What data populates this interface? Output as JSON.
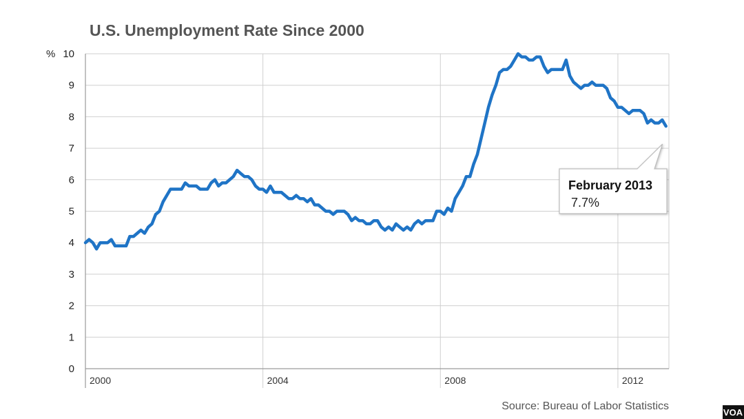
{
  "chart_data": {
    "type": "line",
    "title": "U.S. Unemployment Rate Since 2000",
    "ylabel_prefix": "%",
    "ylim": [
      0,
      10
    ],
    "yticks": [
      0,
      1,
      2,
      3,
      4,
      5,
      6,
      7,
      8,
      9,
      10
    ],
    "xlim": [
      2000,
      2013.15
    ],
    "xticks": [
      2000,
      2004,
      2008,
      2012
    ],
    "xtick_labels": [
      "2000",
      "2004",
      "2008",
      "2012"
    ],
    "grid": true,
    "source": "Source: Bureau of Labor Statistics",
    "series": [
      {
        "color": "#1f74c6",
        "x": [
          2000.0,
          2000.083,
          2000.167,
          2000.25,
          2000.333,
          2000.417,
          2000.5,
          2000.583,
          2000.667,
          2000.75,
          2000.833,
          2000.917,
          2001.0,
          2001.083,
          2001.167,
          2001.25,
          2001.333,
          2001.417,
          2001.5,
          2001.583,
          2001.667,
          2001.75,
          2001.833,
          2001.917,
          2002.0,
          2002.083,
          2002.167,
          2002.25,
          2002.333,
          2002.417,
          2002.5,
          2002.583,
          2002.667,
          2002.75,
          2002.833,
          2002.917,
          2003.0,
          2003.083,
          2003.167,
          2003.25,
          2003.333,
          2003.417,
          2003.5,
          2003.583,
          2003.667,
          2003.75,
          2003.833,
          2003.917,
          2004.0,
          2004.083,
          2004.167,
          2004.25,
          2004.333,
          2004.417,
          2004.5,
          2004.583,
          2004.667,
          2004.75,
          2004.833,
          2004.917,
          2005.0,
          2005.083,
          2005.167,
          2005.25,
          2005.333,
          2005.417,
          2005.5,
          2005.583,
          2005.667,
          2005.75,
          2005.833,
          2005.917,
          2006.0,
          2006.083,
          2006.167,
          2006.25,
          2006.333,
          2006.417,
          2006.5,
          2006.583,
          2006.667,
          2006.75,
          2006.833,
          2006.917,
          2007.0,
          2007.083,
          2007.167,
          2007.25,
          2007.333,
          2007.417,
          2007.5,
          2007.583,
          2007.667,
          2007.75,
          2007.833,
          2007.917,
          2008.0,
          2008.083,
          2008.167,
          2008.25,
          2008.333,
          2008.417,
          2008.5,
          2008.583,
          2008.667,
          2008.75,
          2008.833,
          2008.917,
          2009.0,
          2009.083,
          2009.167,
          2009.25,
          2009.333,
          2009.417,
          2009.5,
          2009.583,
          2009.667,
          2009.75,
          2009.833,
          2009.917,
          2010.0,
          2010.083,
          2010.167,
          2010.25,
          2010.333,
          2010.417,
          2010.5,
          2010.583,
          2010.667,
          2010.75,
          2010.833,
          2010.917,
          2011.0,
          2011.083,
          2011.167,
          2011.25,
          2011.333,
          2011.417,
          2011.5,
          2011.583,
          2011.667,
          2011.75,
          2011.833,
          2011.917,
          2012.0,
          2012.083,
          2012.167,
          2012.25,
          2012.333,
          2012.417,
          2012.5,
          2012.583,
          2012.667,
          2012.75,
          2012.833,
          2012.917,
          2013.0,
          2013.083
        ],
        "y": [
          4.0,
          4.1,
          4.0,
          3.8,
          4.0,
          4.0,
          4.0,
          4.1,
          3.9,
          3.9,
          3.9,
          3.9,
          4.2,
          4.2,
          4.3,
          4.4,
          4.3,
          4.5,
          4.6,
          4.9,
          5.0,
          5.3,
          5.5,
          5.7,
          5.7,
          5.7,
          5.7,
          5.9,
          5.8,
          5.8,
          5.8,
          5.7,
          5.7,
          5.7,
          5.9,
          6.0,
          5.8,
          5.9,
          5.9,
          6.0,
          6.1,
          6.3,
          6.2,
          6.1,
          6.1,
          6.0,
          5.8,
          5.7,
          5.7,
          5.6,
          5.8,
          5.6,
          5.6,
          5.6,
          5.5,
          5.4,
          5.4,
          5.5,
          5.4,
          5.4,
          5.3,
          5.4,
          5.2,
          5.2,
          5.1,
          5.0,
          5.0,
          4.9,
          5.0,
          5.0,
          5.0,
          4.9,
          4.7,
          4.8,
          4.7,
          4.7,
          4.6,
          4.6,
          4.7,
          4.7,
          4.5,
          4.4,
          4.5,
          4.4,
          4.6,
          4.5,
          4.4,
          4.5,
          4.4,
          4.6,
          4.7,
          4.6,
          4.7,
          4.7,
          4.7,
          5.0,
          5.0,
          4.9,
          5.1,
          5.0,
          5.4,
          5.6,
          5.8,
          6.1,
          6.1,
          6.5,
          6.8,
          7.3,
          7.8,
          8.3,
          8.7,
          9.0,
          9.4,
          9.5,
          9.5,
          9.6,
          9.8,
          10.0,
          9.9,
          9.9,
          9.8,
          9.8,
          9.9,
          9.9,
          9.6,
          9.4,
          9.5,
          9.5,
          9.5,
          9.5,
          9.8,
          9.3,
          9.1,
          9.0,
          8.9,
          9.0,
          9.0,
          9.1,
          9.0,
          9.0,
          9.0,
          8.9,
          8.6,
          8.5,
          8.3,
          8.3,
          8.2,
          8.1,
          8.2,
          8.2,
          8.2,
          8.1,
          7.8,
          7.9,
          7.8,
          7.8,
          7.9,
          7.7
        ]
      }
    ],
    "annotation": {
      "label": "February 2013",
      "value_text": "7.7%",
      "x": 2013.083,
      "y": 7.7
    }
  },
  "logo": {
    "text": "VOA"
  }
}
